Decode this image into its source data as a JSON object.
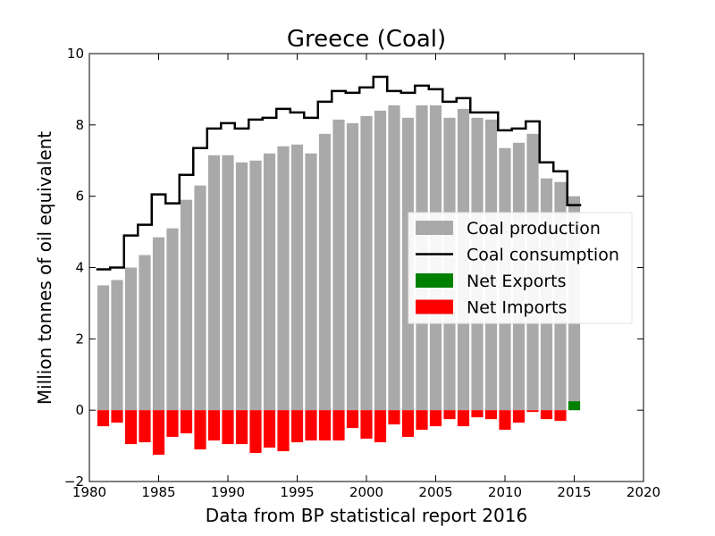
{
  "chart_data": {
    "type": "bar",
    "title": "Greece (Coal)",
    "xlabel": "Data from BP statistical report 2016",
    "ylabel": "Million tonnes of oil equivalent",
    "xlim": [
      1980,
      2020
    ],
    "ylim": [
      -2,
      10
    ],
    "x_ticks": [
      "1980",
      "1985",
      "1990",
      "1995",
      "2000",
      "2005",
      "2010",
      "2015",
      "2020"
    ],
    "y_ticks": [
      "−2",
      "0",
      "2",
      "4",
      "6",
      "8",
      "10"
    ],
    "x": [
      1981,
      1982,
      1983,
      1984,
      1985,
      1986,
      1987,
      1988,
      1989,
      1990,
      1991,
      1992,
      1993,
      1994,
      1995,
      1996,
      1997,
      1998,
      1999,
      2000,
      2001,
      2002,
      2003,
      2004,
      2005,
      2006,
      2007,
      2008,
      2009,
      2010,
      2011,
      2012,
      2013,
      2014,
      2015
    ],
    "series": [
      {
        "name": "Coal production",
        "kind": "bar",
        "color": "#a9a9a9",
        "values": [
          3.5,
          3.65,
          4.0,
          4.35,
          4.85,
          5.1,
          5.9,
          6.3,
          7.15,
          7.15,
          6.95,
          7.0,
          7.2,
          7.4,
          7.45,
          7.2,
          7.75,
          8.15,
          8.05,
          8.25,
          8.4,
          8.55,
          8.2,
          8.55,
          8.55,
          8.2,
          8.45,
          8.2,
          8.15,
          7.35,
          7.5,
          7.75,
          6.5,
          6.4,
          6.0
        ]
      },
      {
        "name": "Coal consumption",
        "kind": "step-line",
        "color": "#000000",
        "values": [
          3.95,
          4.0,
          4.9,
          5.2,
          6.05,
          5.8,
          6.6,
          7.35,
          7.9,
          8.05,
          7.9,
          8.15,
          8.2,
          8.45,
          8.35,
          8.2,
          8.65,
          8.95,
          8.9,
          9.05,
          9.35,
          8.95,
          8.9,
          9.1,
          9.0,
          8.65,
          8.75,
          8.35,
          8.35,
          7.85,
          7.9,
          8.1,
          6.95,
          6.7,
          5.75
        ]
      },
      {
        "name": "Net Exports",
        "kind": "bar",
        "color": "#008000",
        "values": [
          0,
          0,
          0,
          0,
          0,
          0,
          0,
          0,
          0,
          0,
          0,
          0,
          0,
          0,
          0,
          0,
          0,
          0,
          0,
          0,
          0,
          0,
          0,
          0,
          0,
          0,
          0,
          0,
          0,
          0,
          0,
          0,
          0,
          0,
          0.25
        ]
      },
      {
        "name": "Net Imports",
        "kind": "bar",
        "color": "#ff0000",
        "values": [
          -0.45,
          -0.35,
          -0.95,
          -0.9,
          -1.25,
          -0.75,
          -0.65,
          -1.1,
          -0.85,
          -0.95,
          -0.95,
          -1.2,
          -1.05,
          -1.15,
          -0.9,
          -0.85,
          -0.85,
          -0.85,
          -0.5,
          -0.8,
          -0.9,
          -0.4,
          -0.75,
          -0.55,
          -0.45,
          -0.25,
          -0.45,
          -0.2,
          -0.25,
          -0.55,
          -0.35,
          -0.05,
          -0.25,
          -0.3,
          0
        ]
      }
    ],
    "legend": {
      "placement": "center-right",
      "entries": [
        "Coal production",
        "Coal consumption",
        "Net Exports",
        "Net Imports"
      ]
    }
  }
}
